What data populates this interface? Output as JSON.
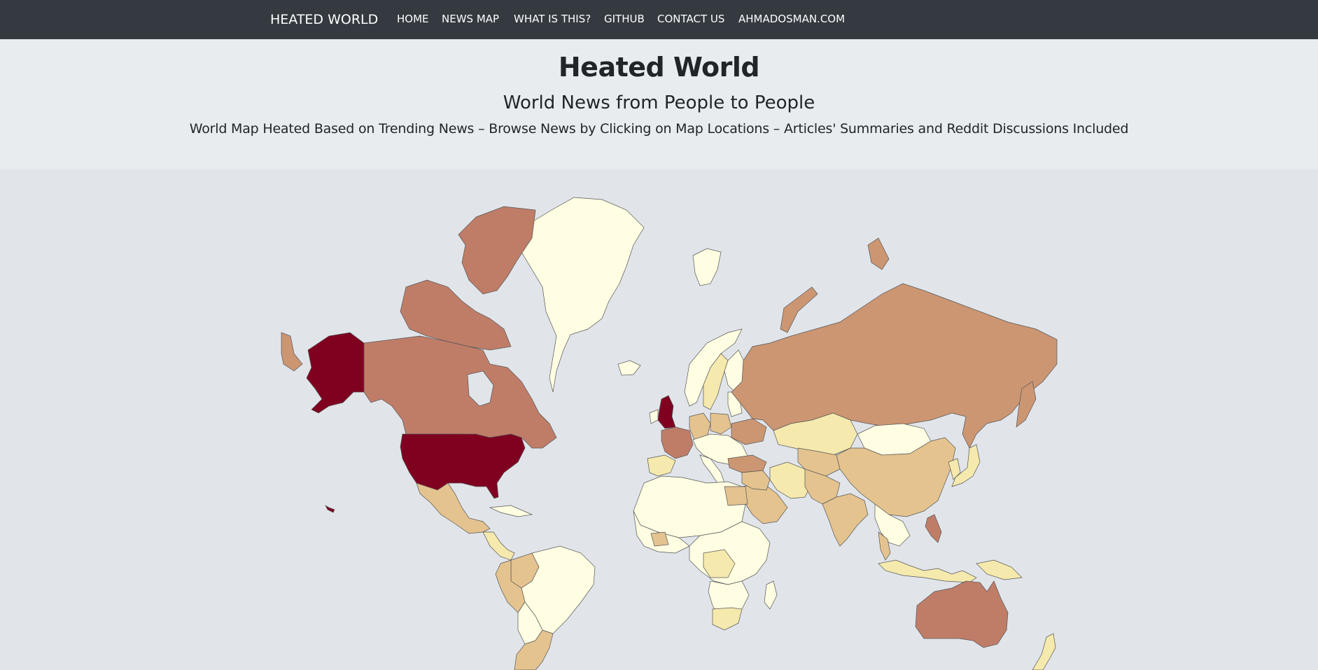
{
  "navbar": {
    "brand": "HEATED WORLD",
    "items": [
      "HOME",
      "NEWS MAP",
      "WHAT IS THIS?",
      "GITHUB",
      "CONTACT US",
      "AHMADOSMAN.COM"
    ]
  },
  "hero": {
    "title": "Heated World",
    "subtitle": "World News from People to People",
    "lead": "World Map Heated Based on Trending News – Browse News by Clicking on Map Locations – Articles' Summaries and Reddit Discussions Included"
  },
  "colors": {
    "navbar": "#343a40",
    "hero_bg": "#e9ecef",
    "map_bg": "#e1e5ea",
    "heat_max": "#800020",
    "heat_high": "#bf7d68",
    "heat_mid": "#cc9673",
    "heat_low_mid": "#e4c38f",
    "heat_low": "#f5e9ad",
    "heat_none": "#fffee2"
  },
  "map": {
    "regions": [
      {
        "name": "United States",
        "heat": "max"
      },
      {
        "name": "Alaska",
        "heat": "max"
      },
      {
        "name": "United Kingdom",
        "heat": "max"
      },
      {
        "name": "Canada",
        "heat": "high"
      },
      {
        "name": "France",
        "heat": "high"
      },
      {
        "name": "Australia",
        "heat": "high"
      },
      {
        "name": "Philippines",
        "heat": "high"
      },
      {
        "name": "Russia",
        "heat": "mid"
      },
      {
        "name": "India",
        "heat": "low_mid"
      },
      {
        "name": "China",
        "heat": "low_mid"
      },
      {
        "name": "Mexico",
        "heat": "low_mid"
      },
      {
        "name": "Argentina",
        "heat": "low_mid"
      },
      {
        "name": "Saudi Arabia",
        "heat": "low_mid"
      },
      {
        "name": "Kazakhstan",
        "heat": "low"
      },
      {
        "name": "Iran",
        "heat": "low"
      },
      {
        "name": "South Africa",
        "heat": "low"
      },
      {
        "name": "Greenland",
        "heat": "none"
      },
      {
        "name": "Brazil",
        "heat": "none"
      }
    ]
  }
}
